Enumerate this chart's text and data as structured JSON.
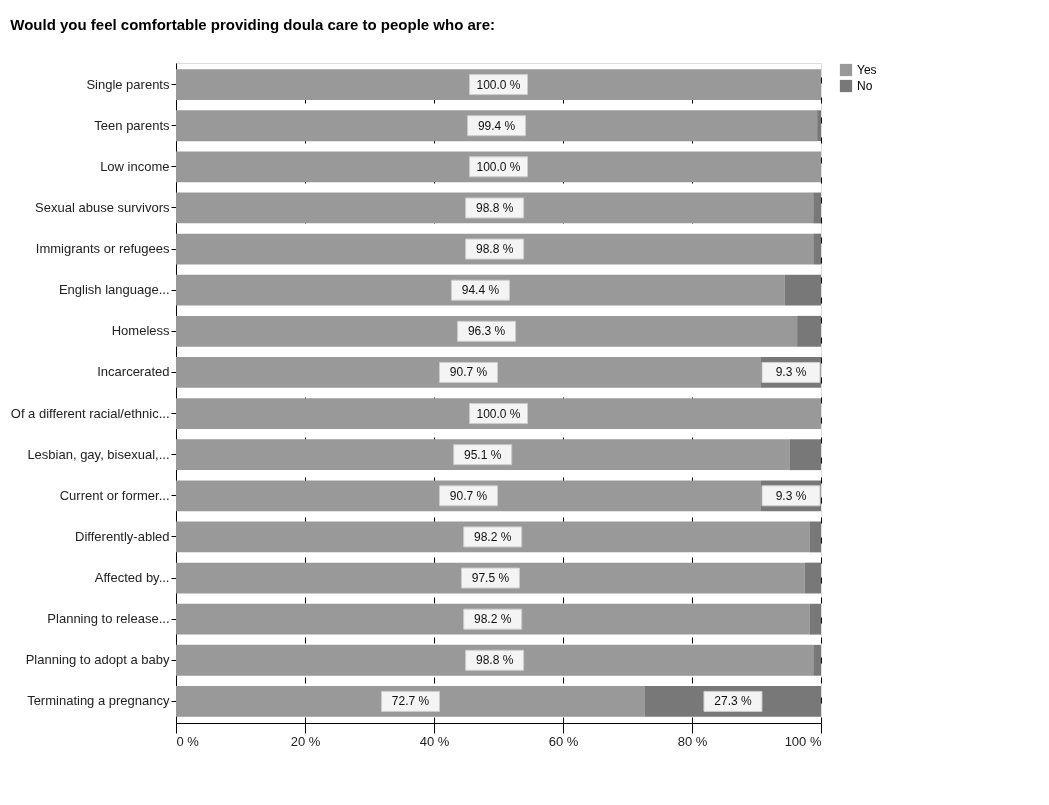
{
  "chart_data": {
    "type": "bar",
    "orientation": "horizontal",
    "stacked": true,
    "title": "Would you feel comfortable providing doula care to people who are:",
    "categories": [
      "Single parents",
      "Teen parents",
      "Low income",
      "Sexual abuse survivors",
      "Immigrants or refugees",
      "English language...",
      "Homeless",
      "Incarcerated",
      "Of a different racial/ethnic...",
      "Lesbian, gay, bisexual,...",
      "Current or former...",
      "Differently-abled",
      "Affected by...",
      "Planning to release...",
      "Planning to adopt a baby",
      "Terminating a pregnancy"
    ],
    "series": [
      {
        "name": "Yes",
        "color": "#999999",
        "values": [
          100.0,
          99.4,
          100.0,
          98.8,
          98.8,
          94.4,
          96.3,
          90.7,
          100.0,
          95.1,
          90.7,
          98.2,
          97.5,
          98.2,
          98.8,
          72.7
        ],
        "value_labels": [
          "100.0 %",
          "99.4 %",
          "100.0 %",
          "98.8 %",
          "98.8 %",
          "94.4 %",
          "96.3 %",
          "90.7 %",
          "100.0 %",
          "95.1 %",
          "90.7 %",
          "98.2 %",
          "97.5 %",
          "98.2 %",
          "98.8 %",
          "72.7 %"
        ]
      },
      {
        "name": "No",
        "color": "#787878",
        "values": [
          0,
          0.6,
          0,
          1.2,
          1.2,
          5.6,
          3.7,
          9.3,
          0,
          4.9,
          9.3,
          1.8,
          2.5,
          1.8,
          1.2,
          27.3
        ],
        "value_labels": [
          null,
          null,
          null,
          null,
          null,
          null,
          null,
          "9.3 %",
          null,
          null,
          "9.3 %",
          null,
          null,
          null,
          null,
          "27.3 %"
        ]
      }
    ],
    "xlim": [
      0,
      100
    ],
    "xticks": [
      {
        "value": 0,
        "label": "0 %"
      },
      {
        "value": 20,
        "label": "20 %"
      },
      {
        "value": 40,
        "label": "40 %"
      },
      {
        "value": 60,
        "label": "60 %"
      },
      {
        "value": 80,
        "label": "80 %"
      },
      {
        "value": 100,
        "label": "100 %"
      }
    ],
    "grid": "x",
    "legend": "right"
  }
}
